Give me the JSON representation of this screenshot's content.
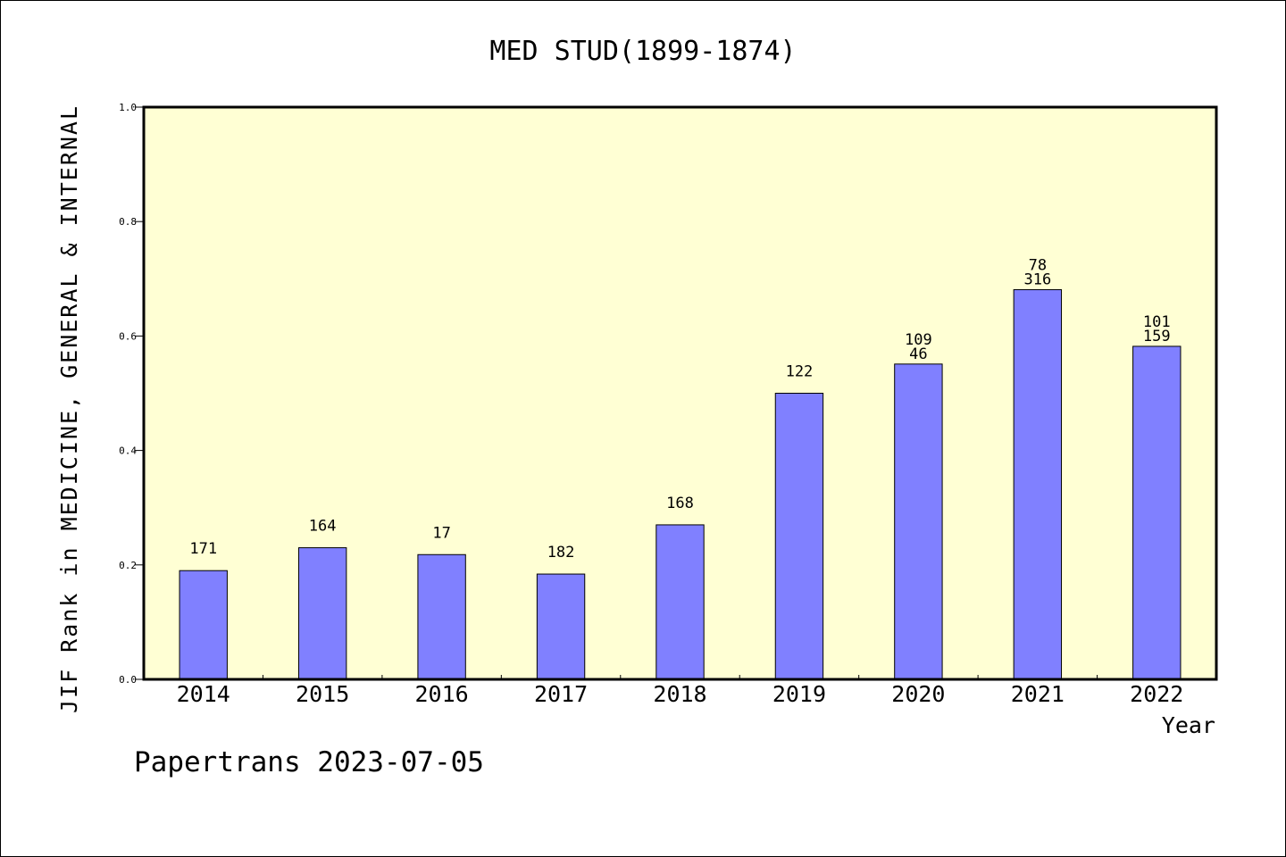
{
  "chart_data": {
    "type": "bar",
    "title": "MED STUD(1899-1874)",
    "xlabel": "Year",
    "ylabel": "JIF Rank in MEDICINE, GENERAL & INTERNAL",
    "ylim": [
      0,
      1.0
    ],
    "yticks": [
      "0.0",
      "0.2",
      "0.4",
      "0.6",
      "0.8",
      "1.0"
    ],
    "grid": false,
    "categories": [
      "2014",
      "2015",
      "2016",
      "2017",
      "2018",
      "2019",
      "2020",
      "2021",
      "2022"
    ],
    "values": [
      0.19,
      0.23,
      0.218,
      0.184,
      0.27,
      0.5,
      0.551,
      0.681,
      0.582
    ],
    "data_labels": [
      [
        "171"
      ],
      [
        "164"
      ],
      [
        "17"
      ],
      [
        "182"
      ],
      [
        "168"
      ],
      [
        "122"
      ],
      [
        "109",
        "46"
      ],
      [
        "78",
        "316"
      ],
      [
        "101",
        "159"
      ]
    ],
    "colors": {
      "plot_background": "#ffffd4",
      "bar_fill": "#8080ff",
      "bar_stroke": "#000000"
    }
  },
  "footer": "Papertrans 2023-07-05"
}
